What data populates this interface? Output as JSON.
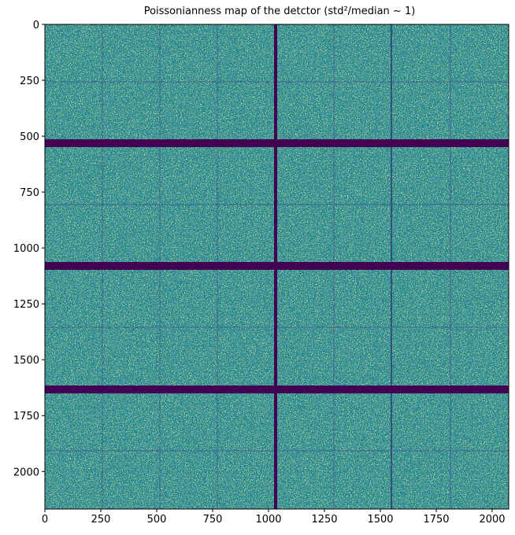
{
  "chart_data": {
    "type": "image",
    "title": "Poissonianness map of the detctor (std²/median ∼ 1)",
    "xlim": [
      0,
      2074
    ],
    "ylim": [
      2168,
      0
    ],
    "xticks": [
      0,
      250,
      500,
      750,
      1000,
      1250,
      1500,
      1750,
      2000
    ],
    "yticks": [
      0,
      250,
      500,
      750,
      1000,
      1250,
      1500,
      1750,
      2000
    ]
  }
}
